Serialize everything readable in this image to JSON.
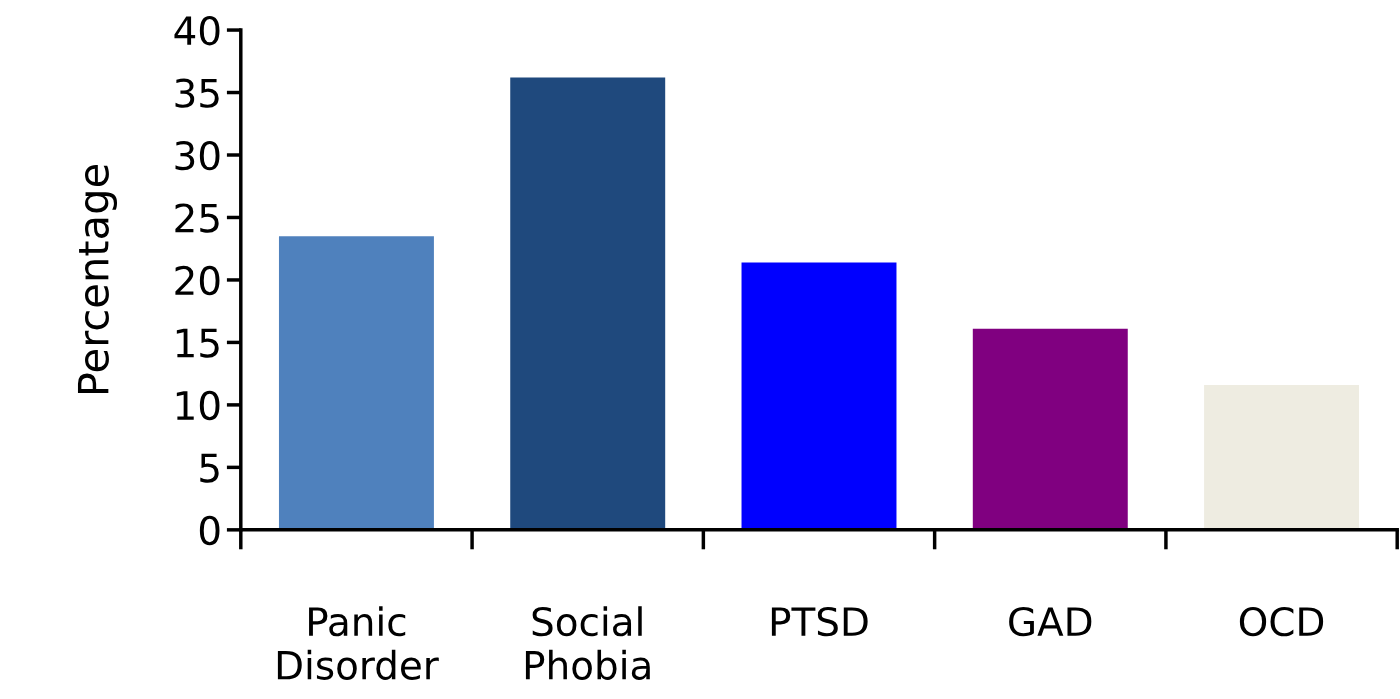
{
  "chart_data": {
    "type": "bar",
    "ylabel": "Percentage",
    "categories": [
      "Panic Disorder",
      "Social Phobia",
      "PTSD",
      "GAD",
      "OCD"
    ],
    "values": [
      23.5,
      36.2,
      21.4,
      16.1,
      11.6
    ],
    "colors": [
      "#4f81bd",
      "#1f497d",
      "#0000ff",
      "#800080",
      "#eeece1"
    ],
    "ylim": [
      0,
      40
    ],
    "yticks": [
      0,
      5,
      10,
      15,
      20,
      25,
      30,
      35,
      40
    ],
    "grid": false,
    "legend": false
  }
}
